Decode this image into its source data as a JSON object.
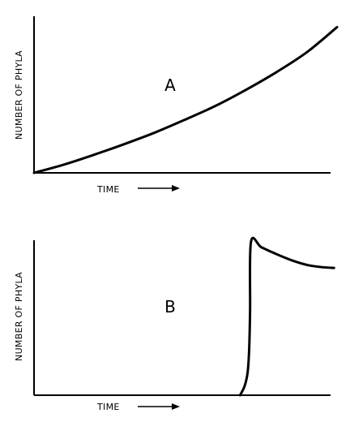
{
  "chart_data": [
    {
      "type": "line",
      "panel_label": "A",
      "xlabel": "TIME",
      "ylabel": "NUMBER OF PHYLA",
      "x": [
        0.0,
        0.1,
        0.2,
        0.3,
        0.4,
        0.5,
        0.6,
        0.7,
        0.8,
        0.9,
        1.0
      ],
      "series": [
        {
          "values": [
            0.0,
            0.055,
            0.12,
            0.19,
            0.265,
            0.35,
            0.44,
            0.545,
            0.66,
            0.79,
            0.955
          ]
        }
      ],
      "xlim": [
        0,
        1
      ],
      "ylim": [
        0,
        1
      ],
      "grid": false
    },
    {
      "type": "line",
      "panel_label": "B",
      "xlabel": "TIME",
      "ylabel": "NUMBER OF PHYLA",
      "x": [
        0.68,
        0.695,
        0.705,
        0.71,
        0.713,
        0.716,
        0.75,
        0.8,
        0.85,
        0.9,
        0.95,
        0.99
      ],
      "series": [
        {
          "values": [
            0.0,
            0.06,
            0.15,
            0.3,
            0.55,
            1.0,
            0.965,
            0.92,
            0.88,
            0.85,
            0.835,
            0.83
          ]
        }
      ],
      "xlim": [
        0,
        1
      ],
      "ylim": [
        0,
        1
      ],
      "grid": false
    }
  ]
}
